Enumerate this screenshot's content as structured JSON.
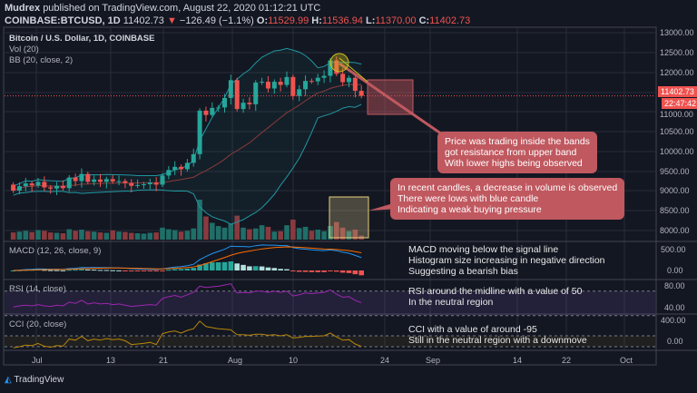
{
  "header": {
    "publisher": "Mudrex",
    "published_text": "published on TradingView.com, August 22, 2020 01:12:21 UTC",
    "symbol": "COINBASE:BTCUSD, 1D",
    "price": "11402.73",
    "change": "−126.49 (−1.1%)",
    "o_label": "O:",
    "o": "11529.99",
    "h_label": "H:",
    "h": "11536.94",
    "l_label": "L:",
    "l": "11370.00",
    "c_label": "C:",
    "c": "11402.73"
  },
  "legend": {
    "title": "Bitcoin / U.S. Dollar, 1D, COINBASE",
    "vol": "Vol (20)",
    "bb": "BB (20, close, 2)"
  },
  "panes": {
    "macd": "MACD (12, 26, close, 9)",
    "rsi": "RSI (14, close)",
    "cci": "CCI (20, close)"
  },
  "price_axis": [
    "13000.00",
    "12500.00",
    "12000.00",
    "11000.00",
    "10500.00",
    "10000.00",
    "9500.00",
    "9000.00",
    "8500.00",
    "8000.00"
  ],
  "last_price_tag": "11402.73",
  "countdown_tag": "22:47:42",
  "macd_axis": [
    "500.00",
    "0.00"
  ],
  "rsi_axis": [
    "80.00",
    "40.00"
  ],
  "cci_axis": [
    "400.00",
    "0.00"
  ],
  "time_axis": [
    "Jul",
    "13",
    "21",
    "Aug",
    "10",
    "24",
    "Sep",
    "14",
    "22",
    "Oct"
  ],
  "annotations": {
    "bands": [
      "Price was trading inside the bands",
      "got resistance from upper band",
      "With lower highs being observed"
    ],
    "volume": [
      "In recent candles, a decrease in volume is observed",
      "There were lows with blue candle",
      "Indicating a weak buying pressure"
    ],
    "macd": [
      "MACD moving below the signal line",
      "Histogram size increasing in negative direction",
      "Suggesting a bearish bias"
    ],
    "rsi": [
      "RSI around the midline with a value of 50",
      "In the neutral region"
    ],
    "cci": [
      "CCI with a value of around -95",
      "Still in the neutral region with a downmove"
    ]
  },
  "brand": "TradingView",
  "colors": {
    "up": "#26a69a",
    "down": "#ef5350",
    "bb": "#2196a0",
    "basis": "#8b3a3a",
    "annotation": "#c0585f"
  },
  "chart_data": {
    "type": "candlestick",
    "start": "2020-06-27",
    "first_open": 9160,
    "closes": [
      9010,
      9120,
      9190,
      9140,
      9230,
      9090,
      9060,
      9130,
      9070,
      9340,
      9250,
      9430,
      9230,
      9290,
      9230,
      9300,
      9240,
      9250,
      9200,
      9130,
      9150,
      9170,
      9210,
      9160,
      9390,
      9530,
      9610,
      9550,
      9710,
      9930,
      11030,
      10920,
      11100,
      11110,
      11350,
      11800,
      11070,
      11230,
      11190,
      11740,
      11760,
      11590,
      11760,
      11680,
      11880,
      11400,
      11570,
      11780,
      11770,
      11860,
      11910,
      12300,
      11960,
      11750,
      11860,
      11530,
      11403
    ],
    "volumes": [
      18,
      20,
      22,
      19,
      24,
      22,
      18,
      17,
      16,
      26,
      22,
      25,
      21,
      20,
      18,
      17,
      23,
      20,
      19,
      17,
      16,
      15,
      17,
      18,
      30,
      26,
      24,
      20,
      22,
      28,
      100,
      58,
      42,
      34,
      30,
      40,
      60,
      30,
      26,
      28,
      36,
      32,
      20,
      21,
      36,
      50,
      29,
      32,
      22,
      25,
      21,
      34,
      44,
      30,
      21,
      25,
      10
    ],
    "rsi": [
      44,
      46,
      47,
      46,
      48,
      46,
      45,
      47,
      46,
      52,
      50,
      55,
      49,
      51,
      49,
      50,
      48,
      49,
      47,
      45,
      46,
      47,
      48,
      47,
      58,
      61,
      63,
      60,
      64,
      68,
      78,
      76,
      77,
      78,
      80,
      82,
      67,
      68,
      67,
      70,
      70,
      68,
      70,
      68,
      70,
      62,
      64,
      67,
      66,
      67,
      68,
      72,
      65,
      60,
      61,
      55,
      51
    ],
    "cci": [
      -120,
      -100,
      -70,
      -80,
      -40,
      -90,
      -110,
      -80,
      -90,
      40,
      20,
      90,
      10,
      40,
      20,
      50,
      30,
      40,
      10,
      -60,
      -50,
      -40,
      -20,
      -60,
      140,
      170,
      190,
      150,
      200,
      230,
      370,
      270,
      250,
      230,
      220,
      210,
      120,
      120,
      110,
      130,
      130,
      110,
      120,
      100,
      120,
      60,
      70,
      90,
      90,
      95,
      100,
      150,
      80,
      20,
      30,
      -50,
      -95
    ],
    "ylim": [
      7800,
      13200
    ]
  }
}
